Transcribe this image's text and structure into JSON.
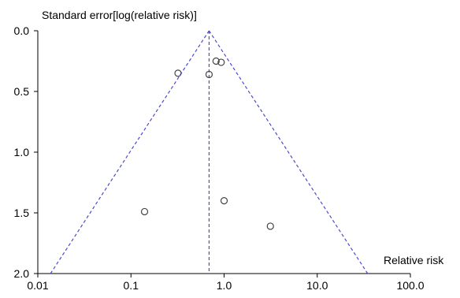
{
  "chart_data": {
    "type": "scatter",
    "title": "",
    "ylabel": "Standard error[log(relative risk)]",
    "xlabel": "Relative risk",
    "x_scale": "log",
    "y_inverted": true,
    "xlim": [
      0.01,
      100
    ],
    "ylim": [
      0,
      2
    ],
    "x_ticks": [
      0.01,
      0.1,
      1,
      10,
      100
    ],
    "x_tick_labels": [
      "0.01",
      "0.1",
      "1.0",
      "10.0",
      "100.0"
    ],
    "y_ticks": [
      0,
      0.5,
      1,
      1.5,
      2
    ],
    "y_tick_labels": [
      "0.0",
      "0.5",
      "1.0",
      "1.5",
      "2.0"
    ],
    "grid": false,
    "pooled_estimate": 0.69,
    "points": [
      {
        "x": 0.82,
        "y": 0.25
      },
      {
        "x": 0.93,
        "y": 0.26
      },
      {
        "x": 0.32,
        "y": 0.35
      },
      {
        "x": 0.69,
        "y": 0.36
      },
      {
        "x": 1.0,
        "y": 1.4
      },
      {
        "x": 0.14,
        "y": 1.49
      },
      {
        "x": 3.14,
        "y": 1.61
      }
    ],
    "colors": {
      "funnel": "#4a4acf",
      "marker": "#444444",
      "axis": "#000000"
    }
  }
}
